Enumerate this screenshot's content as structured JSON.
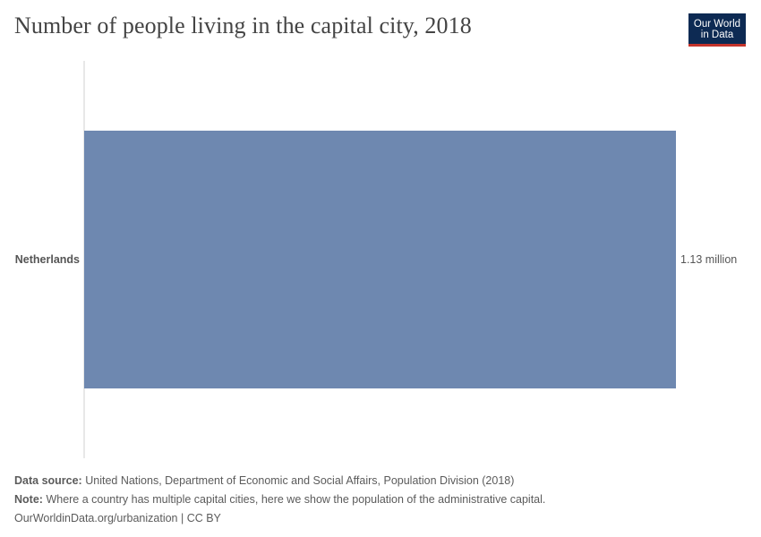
{
  "title": "Number of people living in the capital city, 2018",
  "logo": {
    "line1": "Our World",
    "line2": "in Data"
  },
  "chart_data": {
    "type": "bar",
    "orientation": "horizontal",
    "categories": [
      "Netherlands"
    ],
    "values": [
      1130000
    ],
    "value_labels": [
      "1.13 million"
    ],
    "xlim": [
      0,
      1130000
    ],
    "color": "#6e88b0",
    "grid": false
  },
  "footer": {
    "source_label": "Data source:",
    "source_text": "United Nations, Department of Economic and Social Affairs, Population Division (2018)",
    "note_label": "Note:",
    "note_text": "Where a country has multiple capital cities, here we show the population of the administrative capital.",
    "url": "OurWorldinData.org/urbanization | CC BY"
  }
}
